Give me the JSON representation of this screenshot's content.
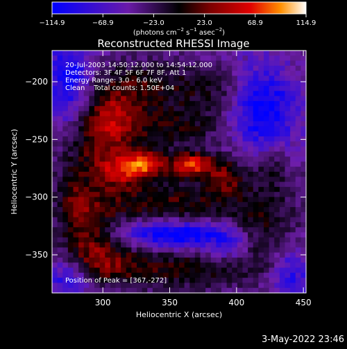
{
  "chart_data": {
    "type": "heatmap",
    "title": "Reconstructed RHESSI Image",
    "xlabel": "Heliocentric X (arcsec)",
    "ylabel": "Heliocentric Y (arcsec)",
    "xlim": [
      262,
      452
    ],
    "ylim": [
      -383,
      -173
    ],
    "x_ticks": [
      300,
      350,
      400,
      450
    ],
    "y_ticks": [
      -200,
      -250,
      -300,
      -350
    ],
    "colorbar": {
      "min": -114.9,
      "max": 114.9,
      "tick_values": [
        -114.9,
        -68.9,
        -23.0,
        23.0,
        68.9,
        114.9
      ],
      "tick_labels": [
        "−114.9",
        "−68.9",
        "−23.0",
        "23.0",
        "68.9",
        "114.9"
      ],
      "units_prefix": "(photons cm",
      "units_sup1": "−2",
      "units_mid1": " s",
      "units_sup2": "−1",
      "units_mid2": " asec",
      "units_sup3": "−2",
      "units_suffix": ")",
      "colormap": "rhessi-purple-red-yellow"
    },
    "annotations": [
      "20-Jul-2003 14:50:12.000 to 14:54:12.000",
      "Detectors: 3F 4F 5F 6F 7F 8F, Att 1",
      "Energy Range: 3.0 - 6.0 keV",
      "Clean    Total counts: 1.50E+04"
    ],
    "peak_label": "Position of Peak = [367,-272]",
    "peak": {
      "x": 367,
      "y": -272,
      "value": 114.9
    },
    "sources": [
      {
        "x": 367,
        "y": -272,
        "amplitude": 112,
        "sigma_x": 11,
        "sigma_y": 7
      },
      {
        "x": 332,
        "y": -272,
        "amplitude": 100,
        "sigma_x": 11,
        "sigma_y": 8
      },
      {
        "x": 312,
        "y": -278,
        "amplitude": 58,
        "sigma_x": 12,
        "sigma_y": 10
      },
      {
        "x": 392,
        "y": -282,
        "amplitude": 60,
        "sigma_x": 10,
        "sigma_y": 12
      },
      {
        "x": 300,
        "y": -255,
        "amplitude": 58,
        "sigma_x": 20,
        "sigma_y": 22
      },
      {
        "x": 305,
        "y": -228,
        "amplitude": 55,
        "sigma_x": 15,
        "sigma_y": 15
      },
      {
        "x": 355,
        "y": -238,
        "amplitude": 45,
        "sigma_x": 28,
        "sigma_y": 14
      },
      {
        "x": 330,
        "y": -203,
        "amplitude": 48,
        "sigma_x": 28,
        "sigma_y": 14
      },
      {
        "x": 385,
        "y": -205,
        "amplitude": 32,
        "sigma_x": 18,
        "sigma_y": 12
      },
      {
        "x": 345,
        "y": -305,
        "amplitude": 55,
        "sigma_x": 40,
        "sigma_y": 14
      },
      {
        "x": 290,
        "y": -330,
        "amplitude": 55,
        "sigma_x": 14,
        "sigma_y": 22
      },
      {
        "x": 300,
        "y": -355,
        "amplitude": 45,
        "sigma_x": 20,
        "sigma_y": 14
      },
      {
        "x": 355,
        "y": -362,
        "amplitude": 50,
        "sigma_x": 40,
        "sigma_y": 12
      },
      {
        "x": 420,
        "y": -330,
        "amplitude": 45,
        "sigma_x": 18,
        "sigma_y": 25
      },
      {
        "x": 425,
        "y": -275,
        "amplitude": 35,
        "sigma_x": 12,
        "sigma_y": 15
      },
      {
        "x": 278,
        "y": -300,
        "amplitude": 35,
        "sigma_x": 10,
        "sigma_y": 22
      },
      {
        "x": 355,
        "y": -332,
        "amplitude": -80,
        "sigma_x": 32,
        "sigma_y": 9
      },
      {
        "x": 420,
        "y": -225,
        "amplitude": -75,
        "sigma_x": 18,
        "sigma_y": 28
      },
      {
        "x": 275,
        "y": -200,
        "amplitude": -70,
        "sigma_x": 12,
        "sigma_y": 28
      },
      {
        "x": 440,
        "y": -365,
        "amplitude": -55,
        "sigma_x": 12,
        "sigma_y": 18
      },
      {
        "x": 275,
        "y": -370,
        "amplitude": -60,
        "sigma_x": 12,
        "sigma_y": 14
      },
      {
        "x": 395,
        "y": -345,
        "amplitude": -40,
        "sigma_x": 12,
        "sigma_y": 10
      }
    ],
    "background": -45
  },
  "timestamp": "3-May-2022 23:46"
}
